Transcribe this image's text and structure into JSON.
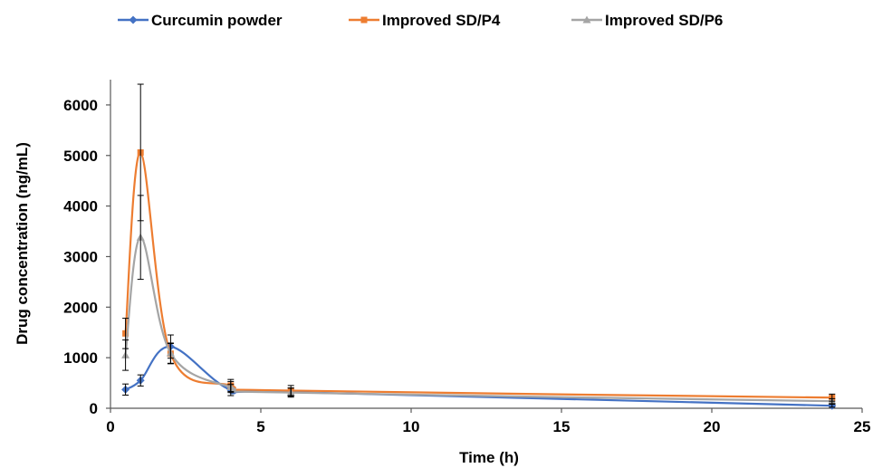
{
  "chart_data": {
    "type": "line",
    "title": "",
    "xlabel": "Time (h)",
    "ylabel": "Drug concentration (ng/mL)",
    "xlim": [
      0,
      25
    ],
    "ylim": [
      0,
      6500
    ],
    "xticks": [
      0,
      5,
      10,
      15,
      20,
      25
    ],
    "yticks": [
      0,
      1000,
      2000,
      3000,
      4000,
      5000,
      6000
    ],
    "x_tick_labels": [
      "0",
      "5",
      "10",
      "15",
      "20",
      "25"
    ],
    "y_tick_labels": [
      "0",
      "1000",
      "2000",
      "3000",
      "4000",
      "5000",
      "6000"
    ],
    "grid": false,
    "legend_position": "top",
    "smooth": true,
    "series": [
      {
        "name": "Curcumin powder",
        "color": "#4472C4",
        "marker": "diamond",
        "x": [
          0.5,
          1,
          2,
          4,
          6,
          24
        ],
        "y": [
          370,
          550,
          1220,
          360,
          320,
          50
        ],
        "error": [
          110,
          110,
          230,
          110,
          80,
          30
        ]
      },
      {
        "name": "Improved SD/P4",
        "color": "#ED7D31",
        "marker": "square",
        "x": [
          0.5,
          1,
          2,
          4,
          6,
          24
        ],
        "y": [
          1480,
          5060,
          1080,
          450,
          350,
          210
        ],
        "error": [
          300,
          1350,
          200,
          120,
          100,
          70
        ]
      },
      {
        "name": "Improved SD/P6",
        "color": "#A5A5A5",
        "marker": "triangle",
        "x": [
          0.5,
          1,
          2,
          4,
          6,
          24
        ],
        "y": [
          1050,
          3380,
          1090,
          420,
          310,
          140
        ],
        "error": [
          300,
          830,
          200,
          110,
          90,
          50
        ]
      }
    ]
  }
}
